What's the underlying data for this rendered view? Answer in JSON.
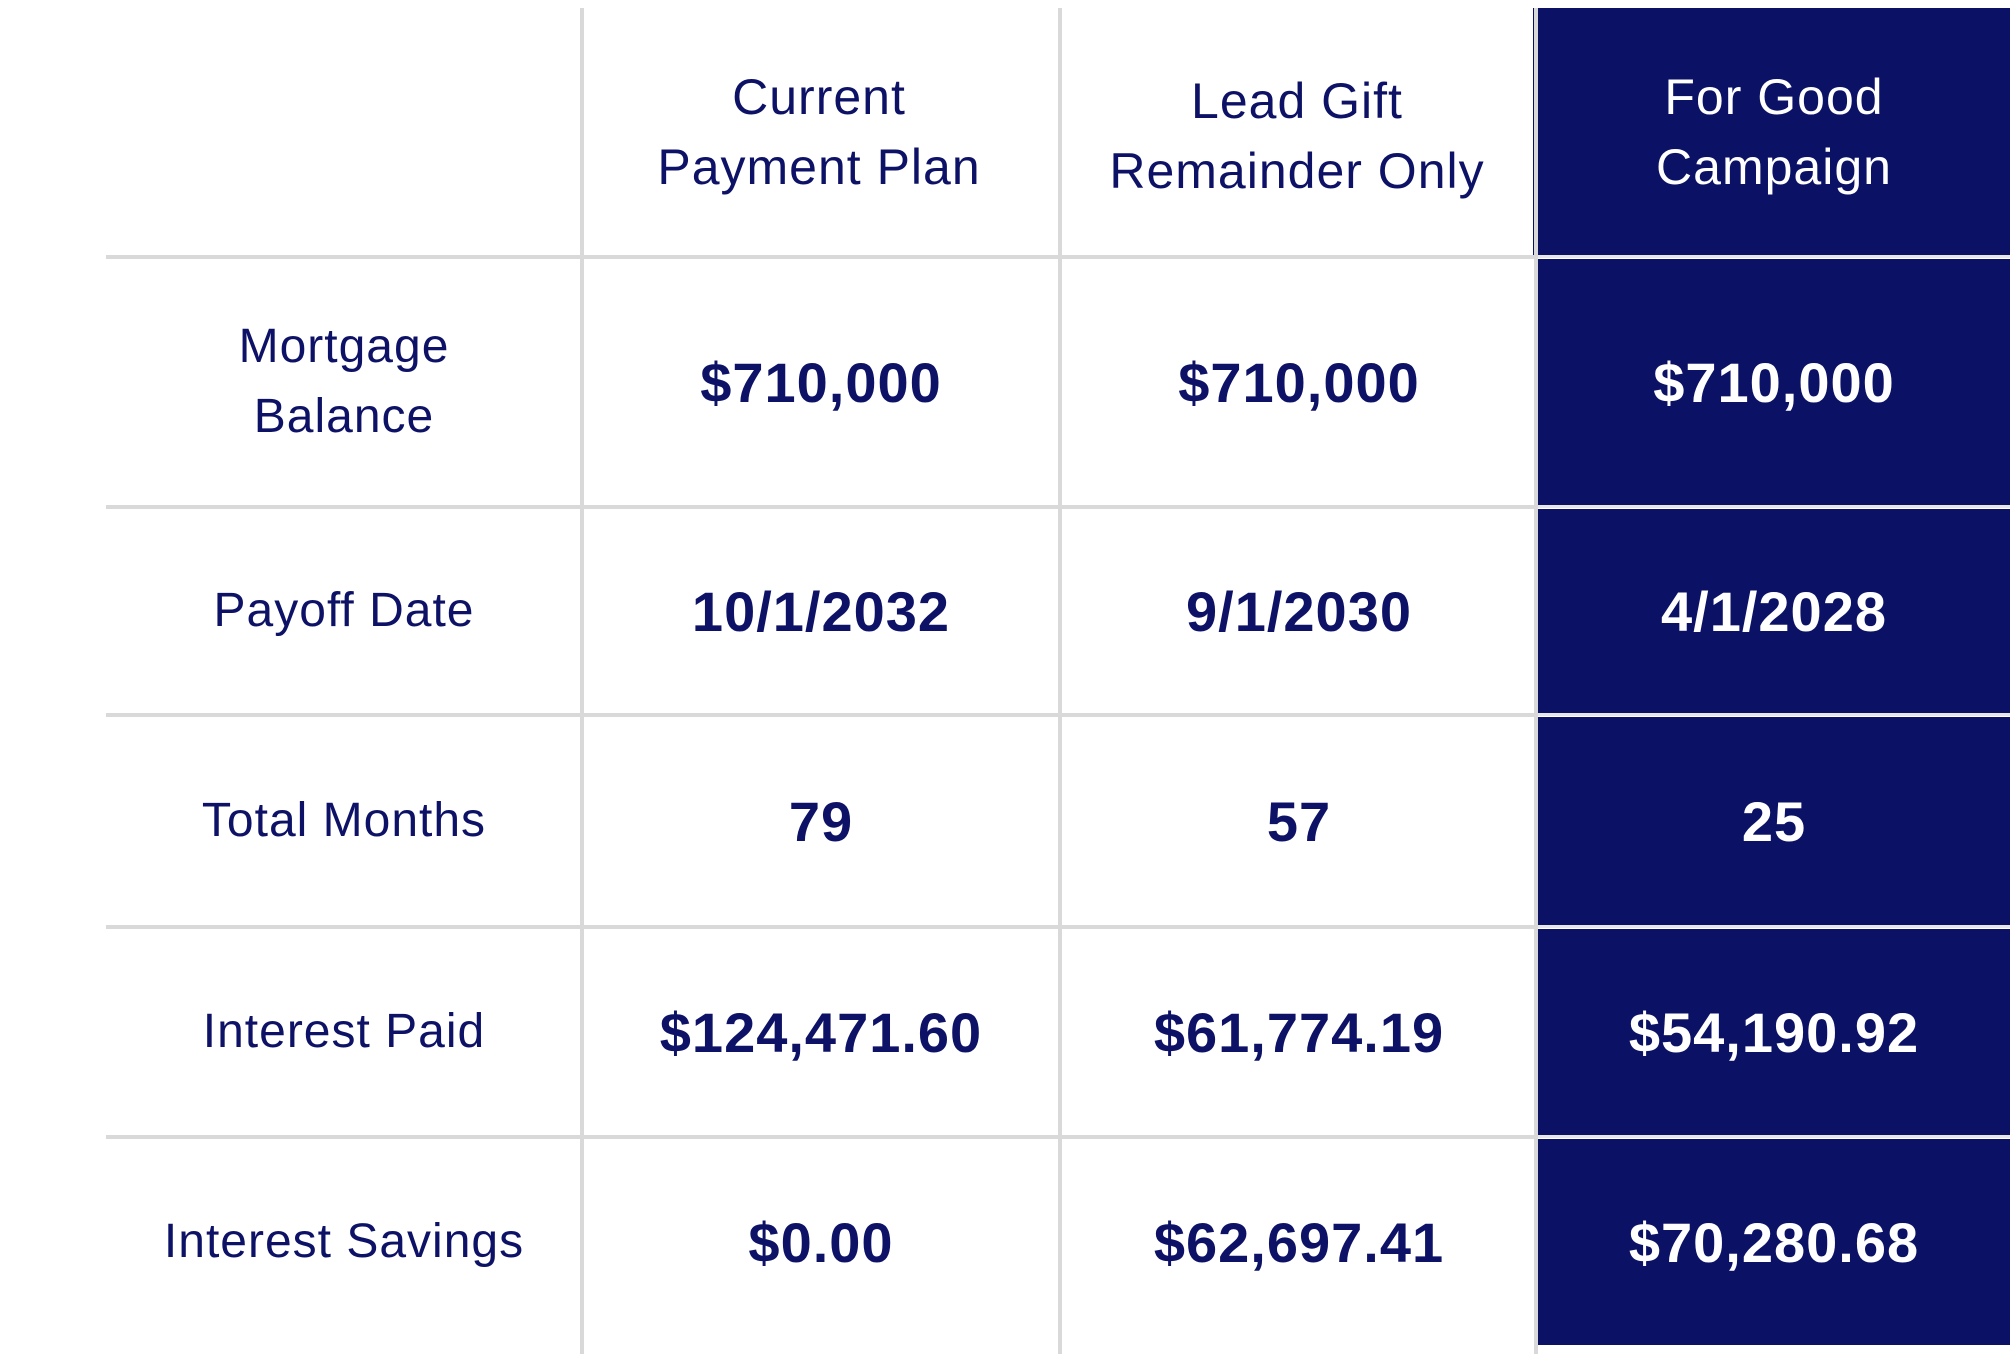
{
  "table": {
    "columns": [
      "Current\nPayment Plan",
      "Lead Gift\nRemainder Only",
      "For Good\nCampaign"
    ],
    "rows": [
      {
        "label": "Mortgage\nBalance",
        "values": [
          "$710,000",
          "$710,000",
          "$710,000"
        ]
      },
      {
        "label": "Payoff Date",
        "values": [
          "10/1/2032",
          "9/1/2030",
          "4/1/2028"
        ]
      },
      {
        "label": "Total Months",
        "values": [
          "79",
          "57",
          "25"
        ]
      },
      {
        "label": "Interest Paid",
        "values": [
          "$124,471.60",
          "$61,774.19",
          "$54,190.92"
        ]
      },
      {
        "label": "Interest Savings",
        "values": [
          "$0.00",
          "$62,697.41",
          "$70,280.68"
        ]
      }
    ],
    "highlight_column": 2,
    "colors": {
      "text": "#0d1266",
      "highlight_bg": "#0b1266",
      "highlight_text": "#ffffff",
      "grid": "#d9d9d9"
    }
  }
}
